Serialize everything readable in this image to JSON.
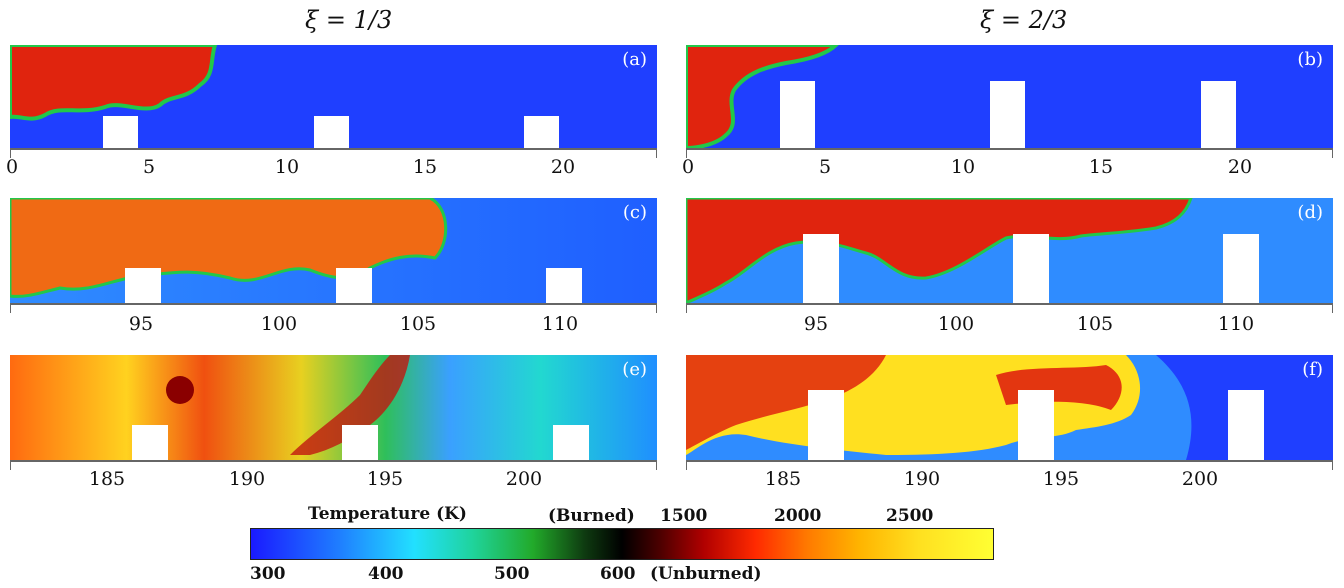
{
  "columns": [
    {
      "title": "ξ = 1/3"
    },
    {
      "title": "ξ = 2/3"
    }
  ],
  "panels": [
    {
      "label": "(a)",
      "ticks": [
        "0",
        "5",
        "10",
        "15",
        "20"
      ]
    },
    {
      "label": "(b)",
      "ticks": [
        "0",
        "5",
        "10",
        "15",
        "20"
      ]
    },
    {
      "label": "(c)",
      "ticks": [
        "95",
        "100",
        "105",
        "110"
      ]
    },
    {
      "label": "(d)",
      "ticks": [
        "95",
        "100",
        "105",
        "110"
      ]
    },
    {
      "label": "(e)",
      "ticks": [
        "185",
        "190",
        "195",
        "200"
      ]
    },
    {
      "label": "(f)",
      "ticks": [
        "185",
        "190",
        "195",
        "200"
      ]
    }
  ],
  "colorbar": {
    "title": "Temperature (K)",
    "burned_label": "(Burned)",
    "unburned_label": "(Unburned)",
    "top_ticks": [
      "1500",
      "2000",
      "2500"
    ],
    "bottom_ticks": [
      "300",
      "400",
      "500",
      "600"
    ]
  },
  "colors": {
    "unburned": "#1f3fff",
    "burned": "#e0240e",
    "hot": "#ffd21f",
    "flame_front": "#22c84a",
    "obstacle": "#ffffff"
  }
}
